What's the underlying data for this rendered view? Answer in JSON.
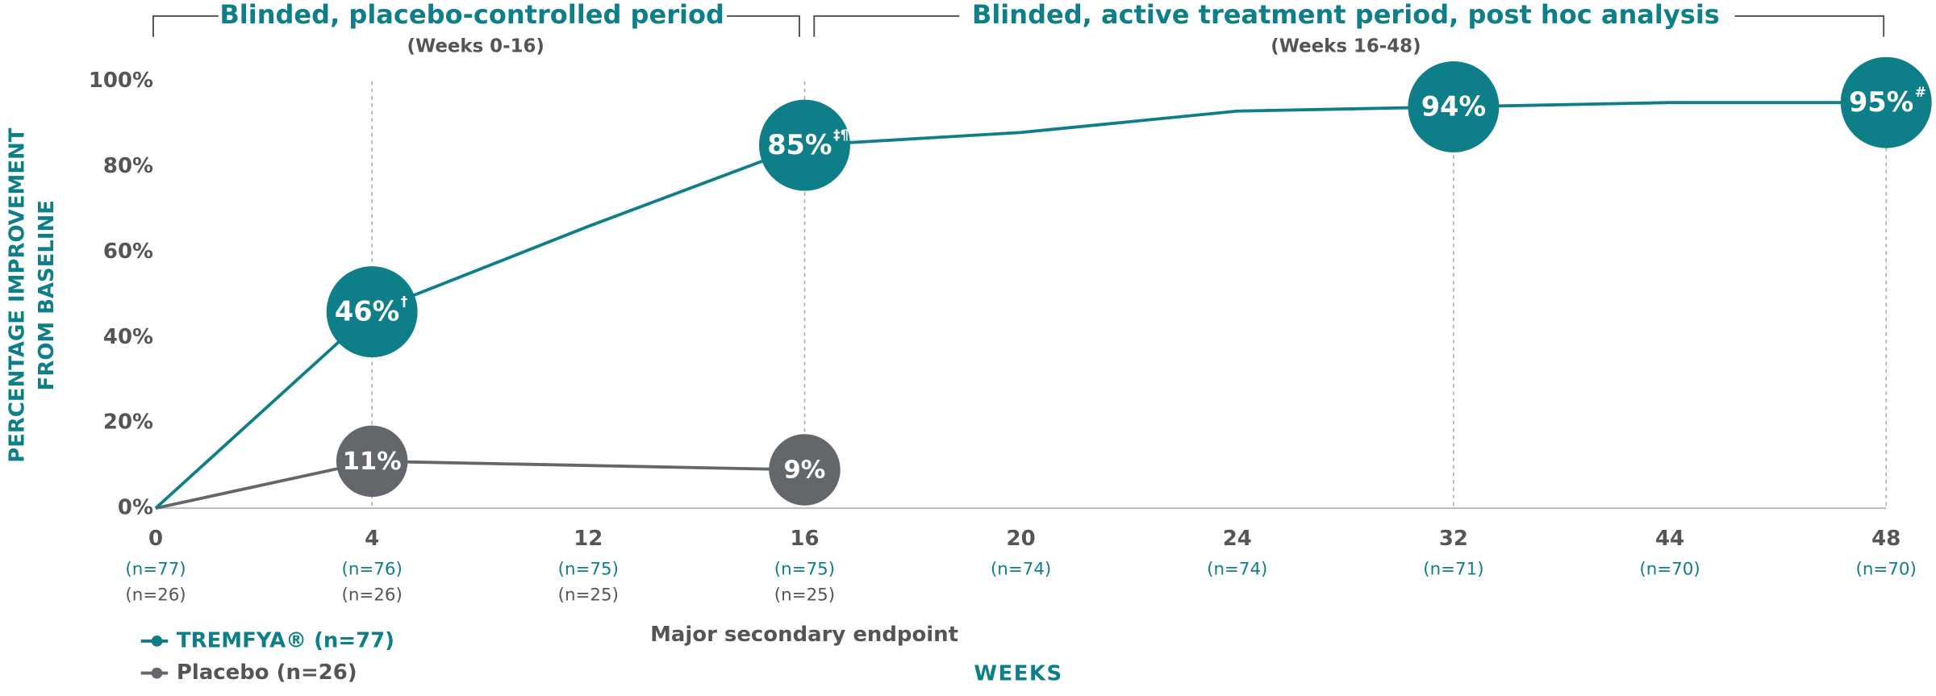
{
  "chart_data": {
    "type": "line",
    "headers": [
      {
        "title": "Blinded, placebo-controlled period",
        "subtitle": "(Weeks 0-16)"
      },
      {
        "title": "Blinded, active treatment period, post hoc analysis",
        "subtitle": "(Weeks 16-48)"
      }
    ],
    "y_label": [
      "PERCENTAGE IMPROVEMENT",
      "FROM BASELINE"
    ],
    "x_label": "WEEKS",
    "annotation": "Major secondary endpoint",
    "categories": [
      "0",
      "4",
      "12",
      "16",
      "20",
      "24",
      "32",
      "44",
      "48"
    ],
    "ylim": [
      0,
      100
    ],
    "yticks": [
      {
        "value": 0,
        "label": "0%"
      },
      {
        "value": 20,
        "label": "20%"
      },
      {
        "value": 40,
        "label": "40%"
      },
      {
        "value": 60,
        "label": "60%"
      },
      {
        "value": 80,
        "label": "80%"
      },
      {
        "value": 100,
        "label": "100%"
      }
    ],
    "series": [
      {
        "name": "TREMFYA® (n=77)",
        "color": "#0e7f88",
        "values": [
          0,
          46,
          66,
          85,
          88,
          93,
          94,
          95,
          95
        ],
        "value_labels": [
          null,
          "46%",
          null,
          "85%",
          null,
          null,
          "94%",
          null,
          "95%"
        ],
        "value_label_notes": [
          null,
          "†",
          null,
          "‡¶",
          null,
          null,
          null,
          null,
          "#"
        ],
        "n": [
          "(n=77)",
          "(n=76)",
          "(n=75)",
          "(n=75)",
          "(n=74)",
          "(n=74)",
          "(n=71)",
          "(n=70)",
          "(n=70)"
        ]
      },
      {
        "name": "Placebo (n=26)",
        "color": "#63666a",
        "values": [
          0,
          11,
          10,
          9,
          null,
          null,
          null,
          null,
          null
        ],
        "value_labels": [
          null,
          "11%",
          null,
          "9%",
          null,
          null,
          null,
          null,
          null
        ],
        "value_label_notes": [
          null,
          null,
          null,
          null,
          null,
          null,
          null,
          null,
          null
        ],
        "n": [
          "(n=26)",
          "(n=26)",
          "(n=25)",
          "(n=25)",
          null,
          null,
          null,
          null,
          null
        ]
      }
    ]
  }
}
